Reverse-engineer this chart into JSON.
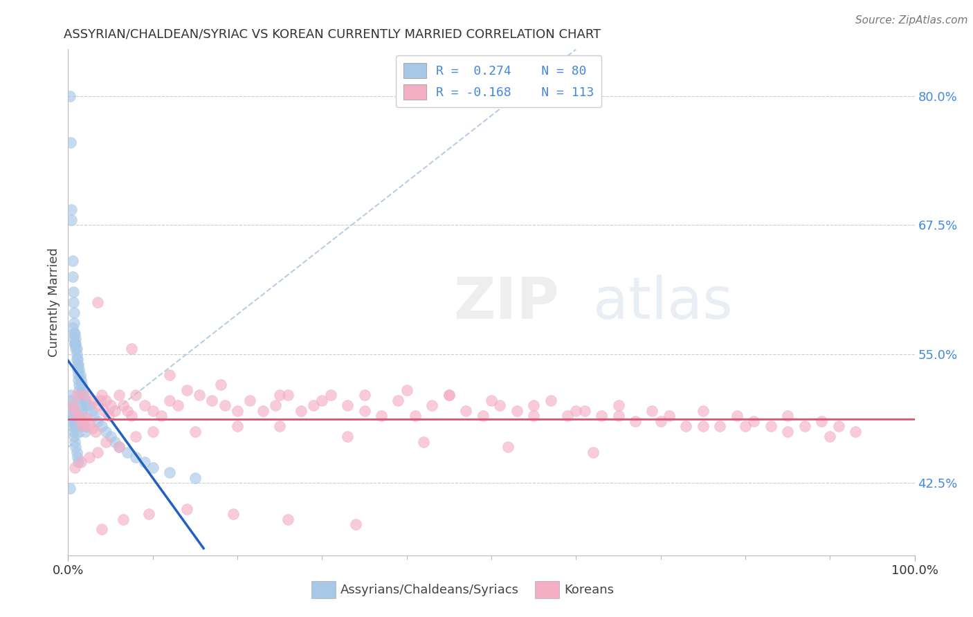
{
  "title": "ASSYRIAN/CHALDEAN/SYRIAC VS KOREAN CURRENTLY MARRIED CORRELATION CHART",
  "source_text": "Source: ZipAtlas.com",
  "ylabel": "Currently Married",
  "xlim": [
    0.0,
    1.0
  ],
  "ylim": [
    0.355,
    0.845
  ],
  "ytick_vals": [
    0.425,
    0.55,
    0.675,
    0.8
  ],
  "ytick_labels": [
    "42.5%",
    "55.0%",
    "67.5%",
    "80.0%"
  ],
  "xtick_vals": [
    0.0,
    1.0
  ],
  "xtick_labels": [
    "0.0%",
    "100.0%"
  ],
  "legend_line1": "R =  0.274    N = 80",
  "legend_line2": "R = -0.168    N = 113",
  "label1": "Assyrians/Chaldeans/Syriacs",
  "label2": "Koreans",
  "color1": "#a8c8e8",
  "color2": "#f4afc4",
  "line_color1": "#2060c0",
  "line_color2": "#e05070",
  "dash_color": "#b0c8e0",
  "tick_color": "#4488dd",
  "background_color": "#ffffff",
  "blue_x": [
    0.002,
    0.003,
    0.004,
    0.004,
    0.005,
    0.005,
    0.006,
    0.006,
    0.007,
    0.007,
    0.008,
    0.008,
    0.009,
    0.009,
    0.01,
    0.01,
    0.011,
    0.011,
    0.012,
    0.012,
    0.013,
    0.013,
    0.014,
    0.014,
    0.015,
    0.016,
    0.017,
    0.018,
    0.019,
    0.02,
    0.005,
    0.006,
    0.007,
    0.008,
    0.009,
    0.01,
    0.011,
    0.012,
    0.013,
    0.014,
    0.015,
    0.016,
    0.017,
    0.018,
    0.02,
    0.022,
    0.025,
    0.028,
    0.03,
    0.035,
    0.04,
    0.045,
    0.05,
    0.055,
    0.06,
    0.07,
    0.08,
    0.09,
    0.1,
    0.12,
    0.003,
    0.004,
    0.005,
    0.006,
    0.007,
    0.008,
    0.009,
    0.01,
    0.011,
    0.012,
    0.003,
    0.004,
    0.005,
    0.006,
    0.007,
    0.008,
    0.009,
    0.01,
    0.002,
    0.15
  ],
  "blue_y": [
    0.8,
    0.755,
    0.68,
    0.69,
    0.64,
    0.625,
    0.61,
    0.6,
    0.59,
    0.58,
    0.57,
    0.56,
    0.56,
    0.565,
    0.555,
    0.545,
    0.54,
    0.535,
    0.53,
    0.525,
    0.52,
    0.515,
    0.51,
    0.505,
    0.5,
    0.495,
    0.49,
    0.485,
    0.48,
    0.475,
    0.575,
    0.565,
    0.57,
    0.56,
    0.555,
    0.55,
    0.545,
    0.54,
    0.535,
    0.53,
    0.525,
    0.52,
    0.515,
    0.51,
    0.505,
    0.5,
    0.5,
    0.495,
    0.49,
    0.485,
    0.48,
    0.475,
    0.47,
    0.465,
    0.46,
    0.455,
    0.45,
    0.445,
    0.44,
    0.435,
    0.49,
    0.485,
    0.48,
    0.475,
    0.47,
    0.465,
    0.46,
    0.455,
    0.45,
    0.445,
    0.51,
    0.505,
    0.5,
    0.495,
    0.49,
    0.485,
    0.48,
    0.475,
    0.42,
    0.43
  ],
  "pink_x": [
    0.005,
    0.008,
    0.01,
    0.012,
    0.015,
    0.018,
    0.02,
    0.022,
    0.025,
    0.028,
    0.03,
    0.032,
    0.035,
    0.038,
    0.04,
    0.042,
    0.045,
    0.048,
    0.05,
    0.055,
    0.06,
    0.065,
    0.07,
    0.075,
    0.08,
    0.09,
    0.1,
    0.11,
    0.12,
    0.13,
    0.14,
    0.155,
    0.17,
    0.185,
    0.2,
    0.215,
    0.23,
    0.245,
    0.26,
    0.275,
    0.29,
    0.31,
    0.33,
    0.35,
    0.37,
    0.39,
    0.41,
    0.43,
    0.45,
    0.47,
    0.49,
    0.51,
    0.53,
    0.55,
    0.57,
    0.59,
    0.61,
    0.63,
    0.65,
    0.67,
    0.69,
    0.71,
    0.73,
    0.75,
    0.77,
    0.79,
    0.81,
    0.83,
    0.85,
    0.87,
    0.89,
    0.91,
    0.93,
    0.008,
    0.015,
    0.025,
    0.035,
    0.045,
    0.06,
    0.08,
    0.1,
    0.15,
    0.2,
    0.25,
    0.3,
    0.35,
    0.4,
    0.45,
    0.5,
    0.55,
    0.6,
    0.65,
    0.7,
    0.75,
    0.8,
    0.85,
    0.9,
    0.035,
    0.075,
    0.12,
    0.18,
    0.25,
    0.33,
    0.42,
    0.52,
    0.62,
    0.04,
    0.065,
    0.095,
    0.14,
    0.195,
    0.26,
    0.34
  ],
  "pink_y": [
    0.5,
    0.495,
    0.51,
    0.49,
    0.485,
    0.48,
    0.51,
    0.488,
    0.483,
    0.478,
    0.505,
    0.475,
    0.5,
    0.505,
    0.51,
    0.495,
    0.505,
    0.49,
    0.5,
    0.495,
    0.51,
    0.5,
    0.495,
    0.49,
    0.51,
    0.5,
    0.495,
    0.49,
    0.505,
    0.5,
    0.515,
    0.51,
    0.505,
    0.5,
    0.495,
    0.505,
    0.495,
    0.5,
    0.51,
    0.495,
    0.5,
    0.51,
    0.5,
    0.495,
    0.49,
    0.505,
    0.49,
    0.5,
    0.51,
    0.495,
    0.49,
    0.5,
    0.495,
    0.49,
    0.505,
    0.49,
    0.495,
    0.49,
    0.5,
    0.485,
    0.495,
    0.49,
    0.48,
    0.495,
    0.48,
    0.49,
    0.485,
    0.48,
    0.49,
    0.48,
    0.485,
    0.48,
    0.475,
    0.44,
    0.445,
    0.45,
    0.455,
    0.465,
    0.46,
    0.47,
    0.475,
    0.475,
    0.48,
    0.51,
    0.505,
    0.51,
    0.515,
    0.51,
    0.505,
    0.5,
    0.495,
    0.49,
    0.485,
    0.48,
    0.48,
    0.475,
    0.47,
    0.6,
    0.555,
    0.53,
    0.52,
    0.48,
    0.47,
    0.465,
    0.46,
    0.455,
    0.38,
    0.39,
    0.395,
    0.4,
    0.395,
    0.39,
    0.385
  ]
}
